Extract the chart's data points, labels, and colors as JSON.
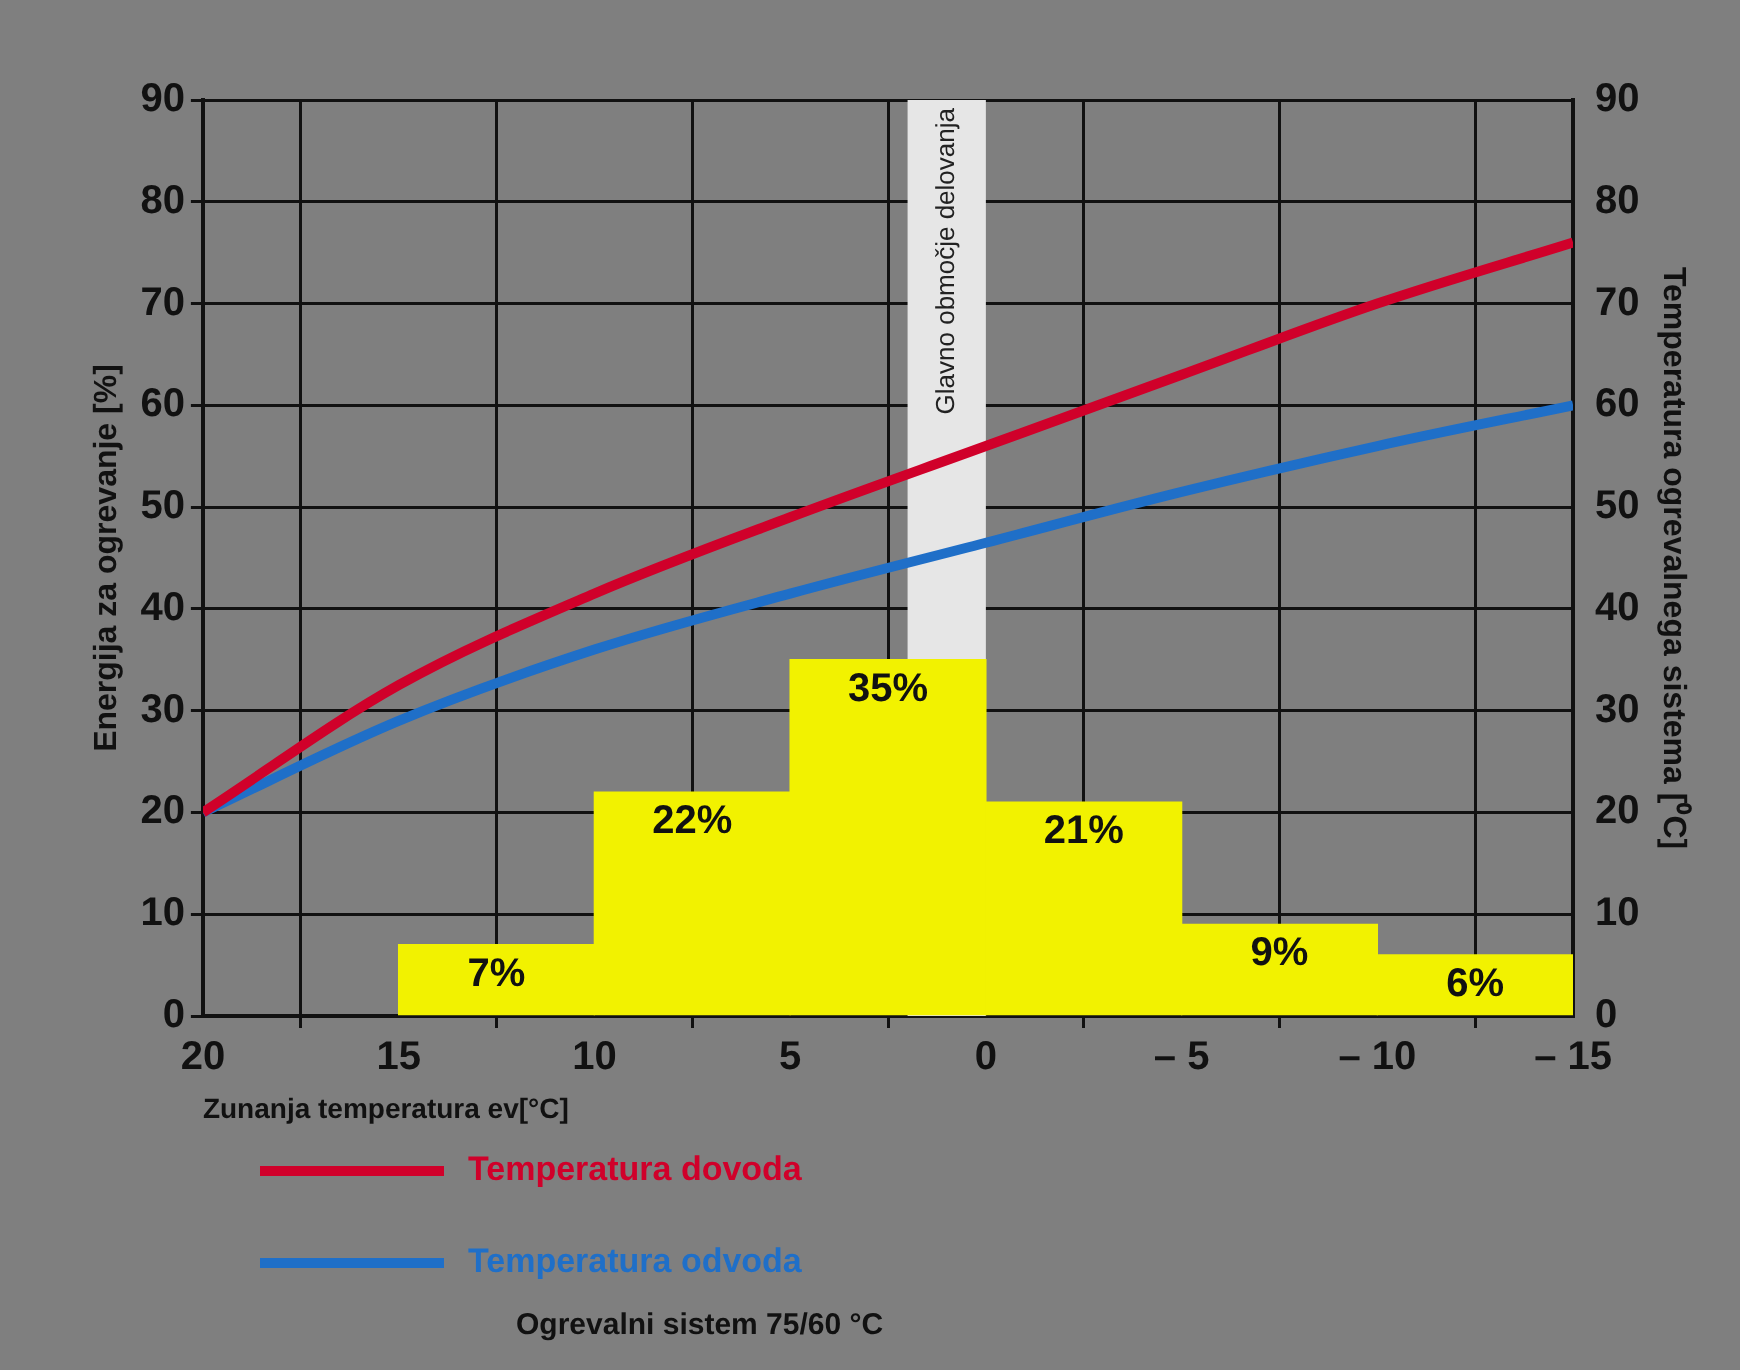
{
  "chart_data": {
    "type": "histogram",
    "xlabel": "Zunanja temperatura ev[°C]",
    "ylabel": "Energija za ogrevanje [%]",
    "y2label": "Temperatura ogrevalnega sistema [⁰C]",
    "xlim": [
      20,
      -15
    ],
    "xticks": [
      20,
      15,
      10,
      5,
      0,
      {
        "value": -5,
        "label": "– 5"
      },
      {
        "value": -10,
        "label": "– 10"
      },
      {
        "value": -15,
        "label": "– 15"
      }
    ],
    "ylim": [
      0,
      90
    ],
    "yticks": [
      0,
      10,
      20,
      30,
      40,
      50,
      60,
      70,
      80,
      90
    ],
    "y2lim": [
      0,
      90
    ],
    "y2ticks": [
      0,
      10,
      20,
      30,
      40,
      50,
      60,
      70,
      80,
      90
    ],
    "series": [
      {
        "color": "#f2f200",
        "bins": [
          15,
          10,
          5,
          0,
          -5,
          -10,
          -15
        ],
        "values": [
          7,
          22,
          35,
          21,
          9,
          6
        ],
        "value_labels": [
          "7%",
          "22%",
          "35%",
          "21%",
          "9%",
          "6%"
        ]
      },
      {
        "type": "line",
        "name": "Temperatura dovoda",
        "color": "#d0002a",
        "axis": "y2",
        "x": [
          20,
          15,
          10,
          5,
          0,
          -5,
          -10,
          -15
        ],
        "values": [
          20,
          32.5,
          41.5,
          49,
          56,
          63,
          70,
          76
        ]
      },
      {
        "type": "line",
        "name": "Temperatura odvoda",
        "color": "#1f6fc8",
        "axis": "y2",
        "x": [
          20,
          15,
          10,
          5,
          0,
          -5,
          -10,
          -15
        ],
        "values": [
          20,
          29,
          36,
          41.5,
          46.5,
          51.5,
          56,
          60
        ]
      }
    ],
    "bands": [
      {
        "axis": "x",
        "from": 2,
        "to": 0,
        "label": "Glavno območje delovanja",
        "color": "#e6e6e6"
      }
    ],
    "grid": true,
    "legend": "bottom",
    "marker": "none",
    "annotations": [
      "Ogrevalni sistem 75/60 °C"
    ]
  }
}
